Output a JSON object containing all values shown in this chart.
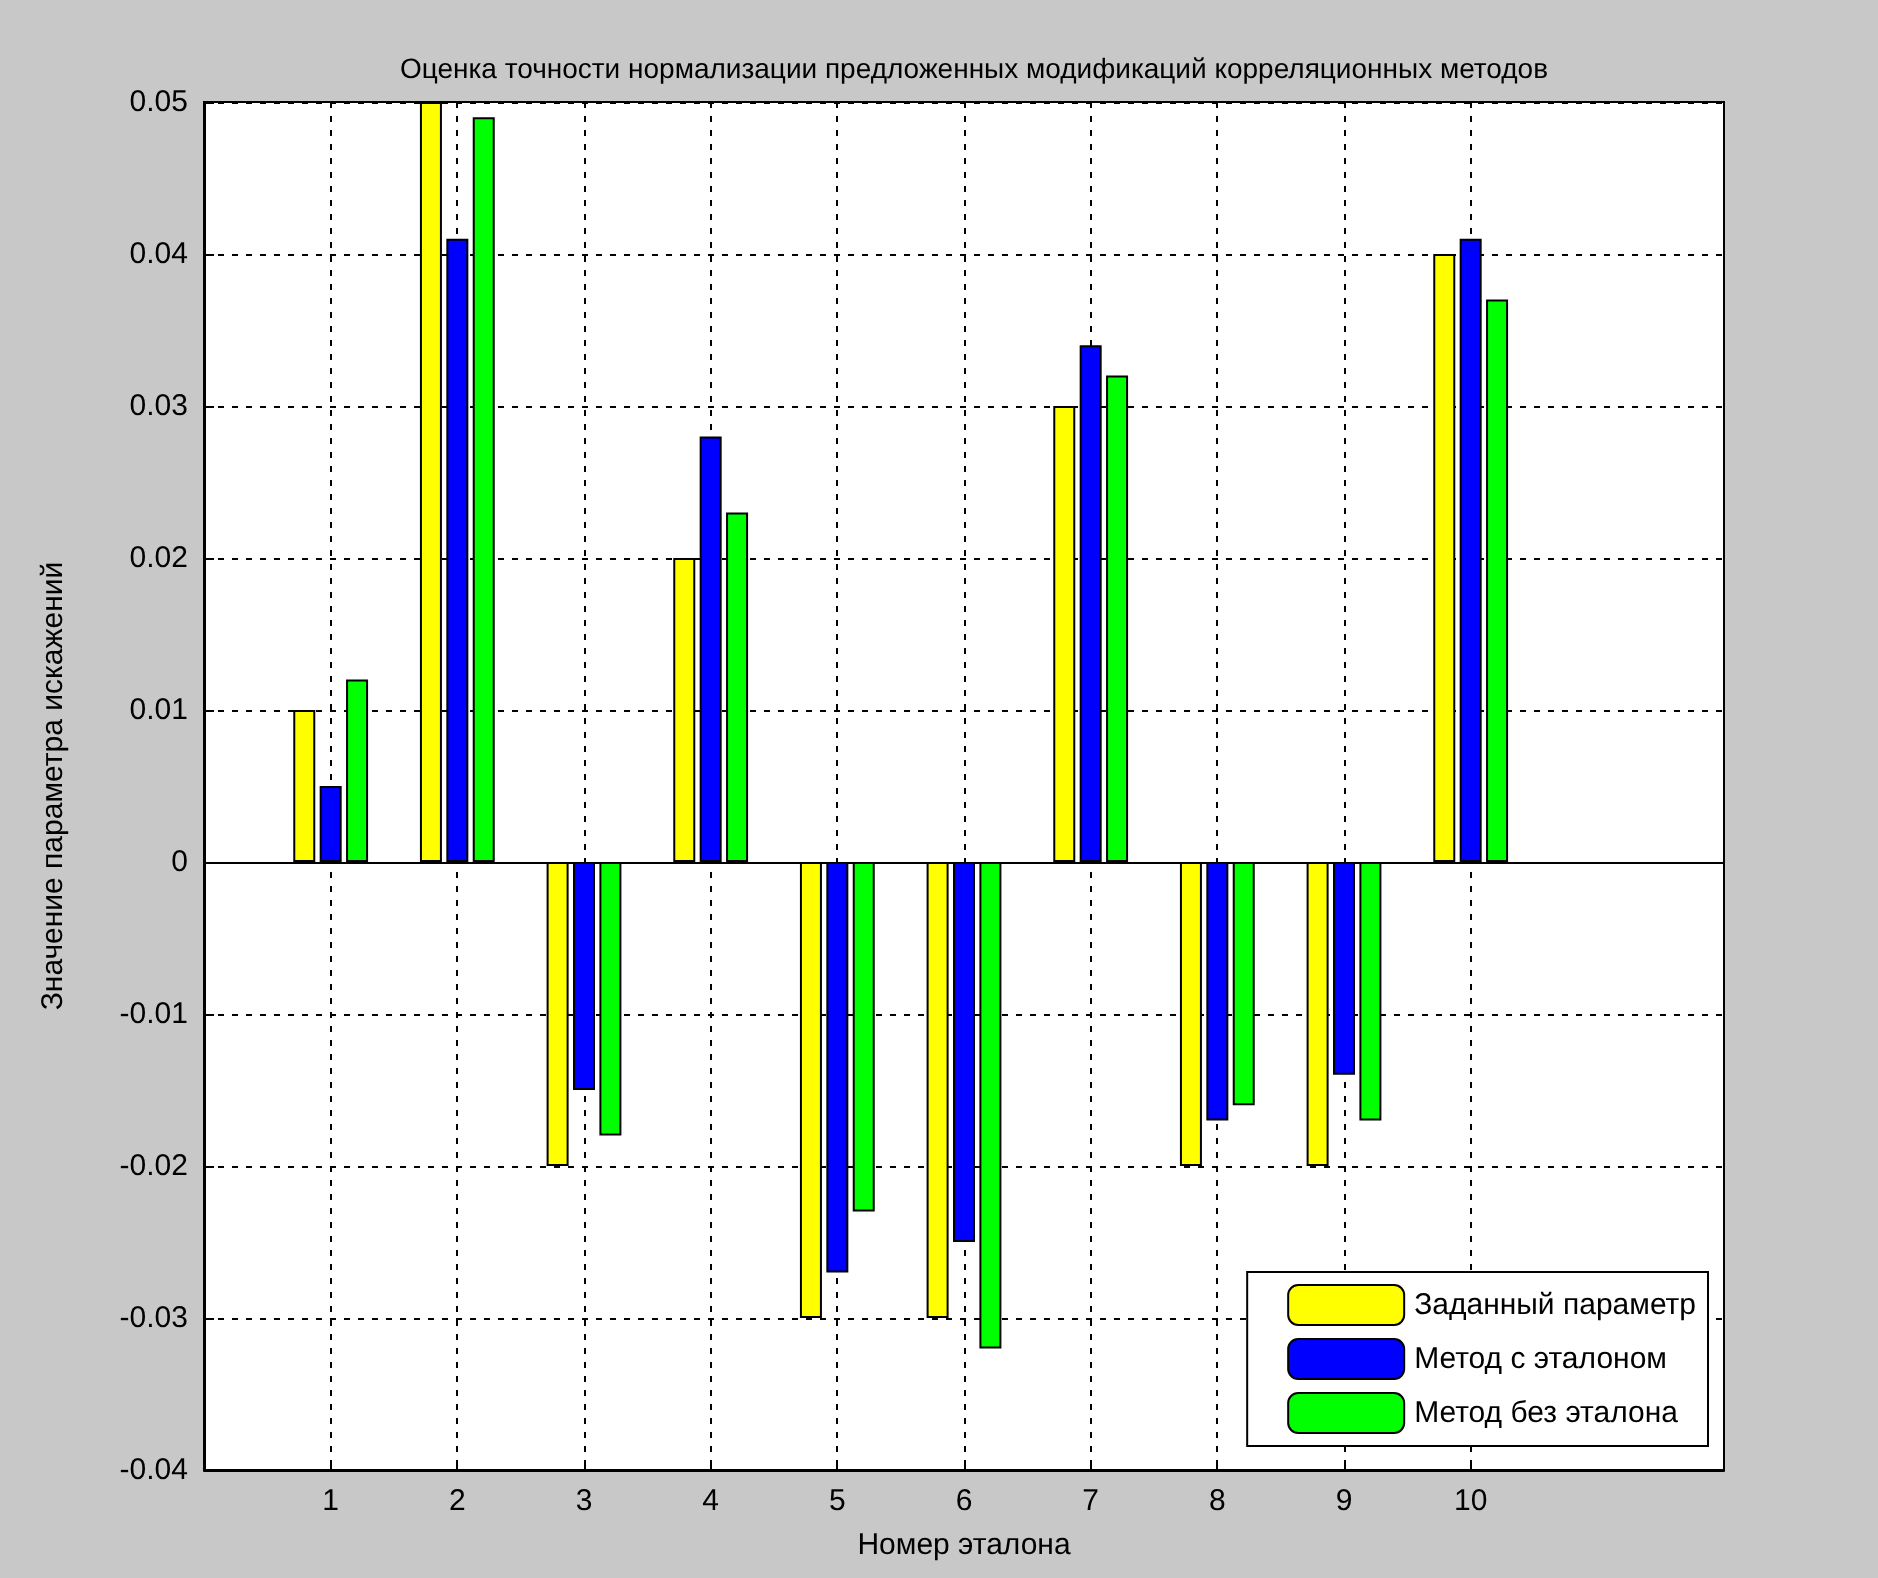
{
  "chart_data": {
    "type": "bar",
    "title": "Оценка точности нормализации предложенных модификаций корреляционных методов",
    "xlabel": "Номер эталона",
    "ylabel": "Значение параметра искажений",
    "x": [
      1,
      2,
      3,
      4,
      5,
      6,
      7,
      8,
      9,
      10
    ],
    "series": [
      {
        "name": "Заданный параметр",
        "color": "#ffff00",
        "values": [
          0.01,
          0.05,
          -0.02,
          0.02,
          -0.03,
          -0.03,
          0.03,
          -0.02,
          -0.02,
          0.04
        ]
      },
      {
        "name": "Метод с эталоном",
        "color": "#0000ff",
        "values": [
          0.005,
          0.041,
          -0.015,
          0.028,
          -0.027,
          -0.025,
          0.034,
          -0.017,
          -0.014,
          0.041
        ]
      },
      {
        "name": "Метод без эталона",
        "color": "#00ff00",
        "values": [
          0.012,
          0.049,
          -0.018,
          0.023,
          -0.023,
          -0.032,
          0.032,
          -0.016,
          -0.017,
          0.037
        ]
      }
    ],
    "xlim": [
      0,
      12
    ],
    "xticks": [
      1,
      2,
      3,
      4,
      5,
      6,
      7,
      8,
      9,
      10
    ],
    "ylim": [
      -0.04,
      0.05
    ],
    "yticks": [
      -0.04,
      -0.03,
      -0.02,
      -0.01,
      0,
      0.01,
      0.02,
      0.03,
      0.04,
      0.05
    ],
    "grid": true,
    "legend": "bottom right"
  }
}
